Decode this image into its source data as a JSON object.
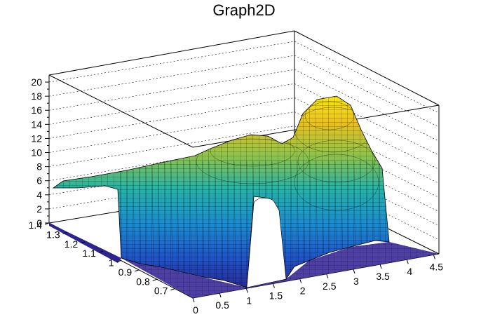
{
  "chart_data": {
    "type": "surface",
    "title": "Graph2D",
    "xlabel": "",
    "ylabel": "",
    "zlabel": "",
    "xlim": [
      0,
      4.6
    ],
    "ylim": [
      0.6,
      1.4
    ],
    "zlim": [
      0,
      21
    ],
    "x_ticks": [
      "0",
      "0.5",
      "1",
      "1.5",
      "2",
      "2.5",
      "3",
      "3.5",
      "4",
      "4.5"
    ],
    "y_ticks": [
      "0.7",
      "0.8",
      "0.9",
      "1",
      "1.1",
      "1.2",
      "1.3",
      "1.4"
    ],
    "z_ticks": [
      "0",
      "2",
      "4",
      "6",
      "8",
      "10",
      "12",
      "14",
      "16",
      "18",
      "20"
    ],
    "grid": true,
    "colormap": "parula",
    "surface_features": [
      {
        "description": "plateau at low x",
        "x": [
          0,
          0.5
        ],
        "y": [
          1.0,
          1.4
        ],
        "z": 5
      },
      {
        "description": "primary peak",
        "x": 1.45,
        "y": 1.05,
        "z": 13
      },
      {
        "description": "secondary peak",
        "x": 3.2,
        "y": 1.25,
        "z": 18
      },
      {
        "description": "inner bump",
        "x": 3.3,
        "y": 0.95,
        "z": 11
      },
      {
        "description": "gap in surface",
        "x": [
          1.0,
          1.4
        ],
        "y": [
          0.6,
          0.85
        ],
        "z": 0
      }
    ]
  }
}
